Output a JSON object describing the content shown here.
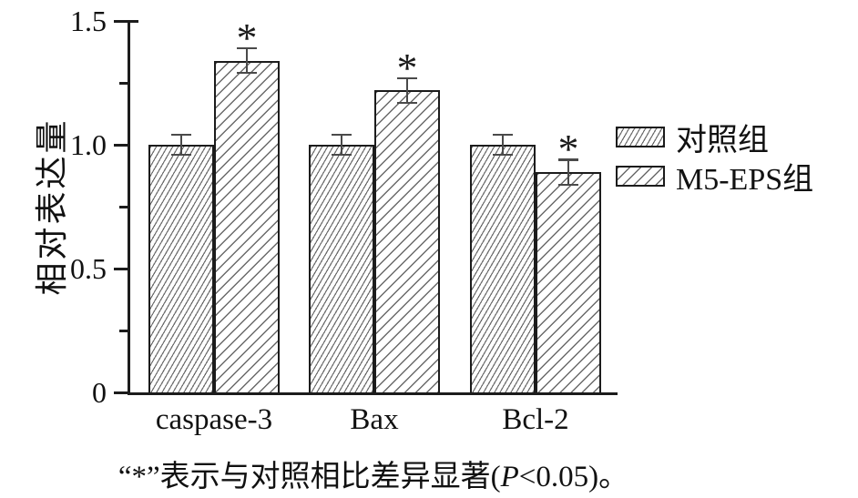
{
  "figure": {
    "caption": {
      "before": "“*”表示与对照相比差异显著(",
      "p": "P",
      "after": "<0.05)。"
    }
  },
  "chart_data": {
    "type": "bar",
    "title": "",
    "xlabel": "",
    "ylabel": "相对表达量",
    "categories": [
      "caspase-3",
      "Bax",
      "Bcl-2"
    ],
    "series": [
      {
        "name": "对照组",
        "values": [
          1.0,
          1.0,
          1.0
        ],
        "errors": [
          0.04,
          0.04,
          0.04
        ],
        "significant": [
          false,
          false,
          false
        ]
      },
      {
        "name": "M5-EPS组",
        "values": [
          1.34,
          1.22,
          0.89
        ],
        "errors": [
          0.05,
          0.05,
          0.05
        ],
        "significant": [
          true,
          true,
          true
        ]
      }
    ],
    "sig_marker": "*",
    "ylim": [
      0,
      1.5
    ],
    "yticks_major": [
      {
        "value": 0,
        "label": "0"
      },
      {
        "value": 0.5,
        "label": "0.5"
      },
      {
        "value": 1,
        "label": "1.0"
      },
      {
        "value": 1.5,
        "label": "1.5"
      }
    ],
    "yticks_minor": [
      0.25,
      0.75,
      1.25
    ],
    "legend_position": "right of plot, upper area",
    "grid": false,
    "colors": {
      "ink": "#1c1c1c",
      "hatch": "#6a6a6a",
      "error_bar": "#4a4a4a",
      "background": "#ffffff"
    }
  }
}
